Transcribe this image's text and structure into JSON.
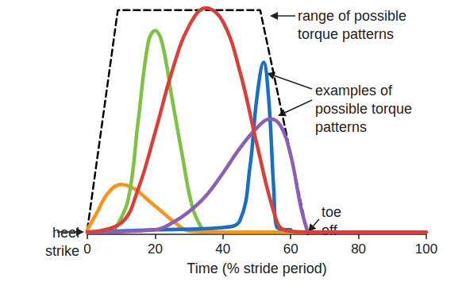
{
  "chart_data": {
    "type": "line",
    "x_label": "Time (% stride period)",
    "xlim": [
      0,
      100
    ],
    "xticks": [
      0,
      20,
      40,
      60,
      80,
      100
    ],
    "ylim": [
      0,
      1
    ],
    "tick_labels": "x",
    "annotations": [
      "range of possible\ntorque patterns",
      "examples of\npossible torque\npatterns",
      "heel\nstrike",
      "toe\noff"
    ],
    "series": [
      {
        "color": "#000000",
        "line_style": "dashed",
        "x": [
          0,
          9,
          51,
          65
        ],
        "values": [
          0.02,
          0.99,
          0.99,
          0.0
        ]
      },
      {
        "color": "#f7941d",
        "line_style": "solid",
        "x": [
          0,
          3,
          6,
          10,
          14,
          18,
          22,
          26,
          30,
          40,
          65
        ],
        "values": [
          0.02,
          0.1,
          0.18,
          0.22,
          0.2,
          0.15,
          0.1,
          0.05,
          0.015,
          0.01,
          0.01
        ]
      },
      {
        "color": "#7dc243",
        "line_style": "solid",
        "x": [
          8,
          12,
          15,
          18,
          20,
          22,
          25,
          28,
          31,
          34
        ],
        "values": [
          0.02,
          0.15,
          0.5,
          0.85,
          0.9,
          0.85,
          0.6,
          0.35,
          0.12,
          0.02
        ]
      },
      {
        "color": "#1a6fc0",
        "line_style": "solid",
        "x": [
          0,
          20,
          40,
          45,
          48,
          50,
          52,
          53.5,
          55,
          56,
          60
        ],
        "values": [
          0.01,
          0.02,
          0.03,
          0.06,
          0.3,
          0.6,
          0.76,
          0.6,
          0.2,
          0.03,
          0.02
        ]
      },
      {
        "color": "#8b5fb5",
        "line_style": "solid",
        "x": [
          0,
          20,
          25,
          30,
          35,
          40,
          45,
          50,
          54,
          57,
          60,
          63,
          65
        ],
        "values": [
          0.01,
          0.02,
          0.05,
          0.1,
          0.17,
          0.27,
          0.38,
          0.47,
          0.51,
          0.48,
          0.35,
          0.12,
          0.01
        ]
      },
      {
        "color": "#d9403a",
        "line_style": "solid",
        "x": [
          0,
          10,
          15,
          20,
          25,
          30,
          35,
          40,
          45,
          50,
          55,
          58,
          65,
          100
        ],
        "values": [
          0.01,
          0.05,
          0.2,
          0.45,
          0.72,
          0.92,
          1.0,
          0.94,
          0.72,
          0.4,
          0.1,
          0.02,
          0.01,
          0.01
        ]
      }
    ]
  }
}
